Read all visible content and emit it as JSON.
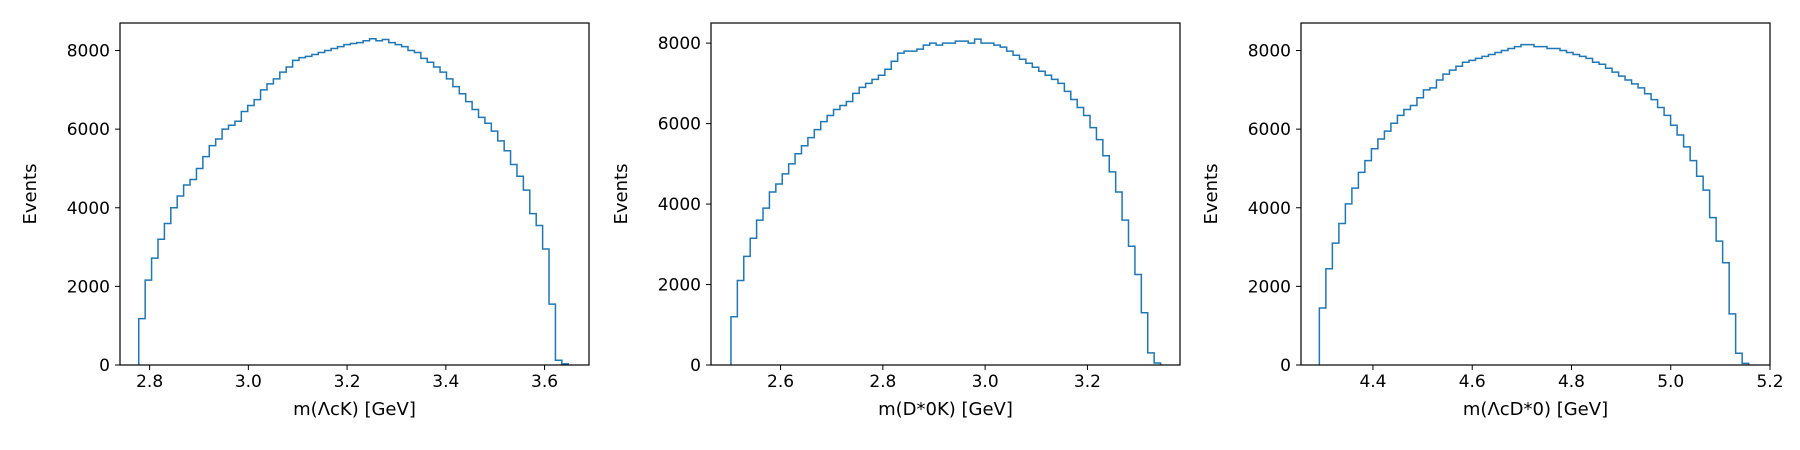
{
  "chart_data": [
    {
      "type": "histogram",
      "xlabel": "m(ΛcK) [GeV]",
      "ylabel": "Events",
      "xlim": [
        2.74,
        3.69
      ],
      "ylim": [
        0,
        8700
      ],
      "xticks": [
        2.8,
        3.0,
        3.2,
        3.4,
        3.6
      ],
      "xtick_labels": [
        "2.8",
        "3.0",
        "3.2",
        "3.4",
        "3.6"
      ],
      "yticks": [
        0,
        2000,
        4000,
        6000,
        8000
      ],
      "ytick_labels": [
        "0",
        "2000",
        "4000",
        "6000",
        "8000"
      ],
      "grid": false,
      "color": "#1f77b4",
      "bin_edges_range": [
        2.778,
        3.648
      ],
      "values": [
        1180,
        2160,
        2720,
        3200,
        3600,
        4000,
        4300,
        4580,
        4720,
        5000,
        5300,
        5580,
        5750,
        6000,
        6100,
        6200,
        6450,
        6600,
        6750,
        7000,
        7150,
        7280,
        7450,
        7580,
        7750,
        7820,
        7850,
        7900,
        7950,
        8000,
        8050,
        8100,
        8150,
        8180,
        8200,
        8250,
        8300,
        8250,
        8280,
        8200,
        8150,
        8100,
        8000,
        7950,
        7800,
        7700,
        7580,
        7450,
        7280,
        7080,
        6900,
        6700,
        6500,
        6300,
        6150,
        5950,
        5700,
        5450,
        5100,
        4800,
        4450,
        3850,
        3550,
        2950,
        1550,
        120,
        30
      ]
    },
    {
      "type": "histogram",
      "xlabel": "m(D*0K) [GeV]",
      "ylabel": "Events",
      "xlim": [
        2.464,
        3.381
      ],
      "ylim": [
        0,
        8500
      ],
      "xticks": [
        2.6,
        2.8,
        3.0,
        3.2
      ],
      "xtick_labels": [
        "2.6",
        "2.8",
        "3.0",
        "3.2"
      ],
      "yticks": [
        0,
        2000,
        4000,
        6000,
        8000
      ],
      "ytick_labels": [
        "0",
        "2000",
        "4000",
        "6000",
        "8000"
      ],
      "grid": false,
      "color": "#1f77b4",
      "bin_edges_range": [
        2.503,
        3.343
      ],
      "values": [
        1200,
        2100,
        2700,
        3150,
        3600,
        3900,
        4300,
        4500,
        4750,
        5000,
        5250,
        5450,
        5650,
        5850,
        6050,
        6200,
        6350,
        6450,
        6550,
        6750,
        6900,
        7000,
        7100,
        7200,
        7350,
        7550,
        7750,
        7800,
        7800,
        7850,
        7950,
        8000,
        7950,
        8000,
        8000,
        8050,
        8050,
        8000,
        8100,
        8000,
        8000,
        7950,
        7900,
        7800,
        7700,
        7600,
        7500,
        7400,
        7300,
        7200,
        7100,
        7000,
        6800,
        6600,
        6400,
        6200,
        5900,
        5600,
        5200,
        4800,
        4300,
        3600,
        2950,
        2250,
        1300,
        300,
        50
      ]
    },
    {
      "type": "histogram",
      "xlabel": "m(ΛcD*0) [GeV]",
      "ylabel": "Events",
      "xlim": [
        4.255,
        5.2
      ],
      "ylim": [
        0,
        8700
      ],
      "xticks": [
        4.4,
        4.6,
        4.8,
        5.0,
        5.2
      ],
      "xtick_labels": [
        "4.4",
        "4.6",
        "4.8",
        "5.0",
        "5.2"
      ],
      "yticks": [
        0,
        2000,
        4000,
        6000,
        8000
      ],
      "ytick_labels": [
        "0",
        "2000",
        "4000",
        "6000",
        "8000"
      ],
      "grid": false,
      "color": "#1f77b4",
      "bin_edges_range": [
        4.292,
        5.157
      ],
      "values": [
        1450,
        2450,
        3100,
        3600,
        4100,
        4500,
        4900,
        5200,
        5500,
        5750,
        5950,
        6150,
        6350,
        6500,
        6600,
        6800,
        7000,
        7050,
        7250,
        7400,
        7500,
        7600,
        7700,
        7750,
        7800,
        7850,
        7900,
        7950,
        8000,
        8050,
        8100,
        8150,
        8150,
        8100,
        8100,
        8050,
        8050,
        8000,
        7950,
        7900,
        7850,
        7800,
        7700,
        7650,
        7550,
        7450,
        7350,
        7250,
        7150,
        7050,
        6900,
        6750,
        6550,
        6350,
        6100,
        5850,
        5550,
        5200,
        4800,
        4450,
        3750,
        3150,
        2600,
        1300,
        300,
        40
      ]
    }
  ]
}
